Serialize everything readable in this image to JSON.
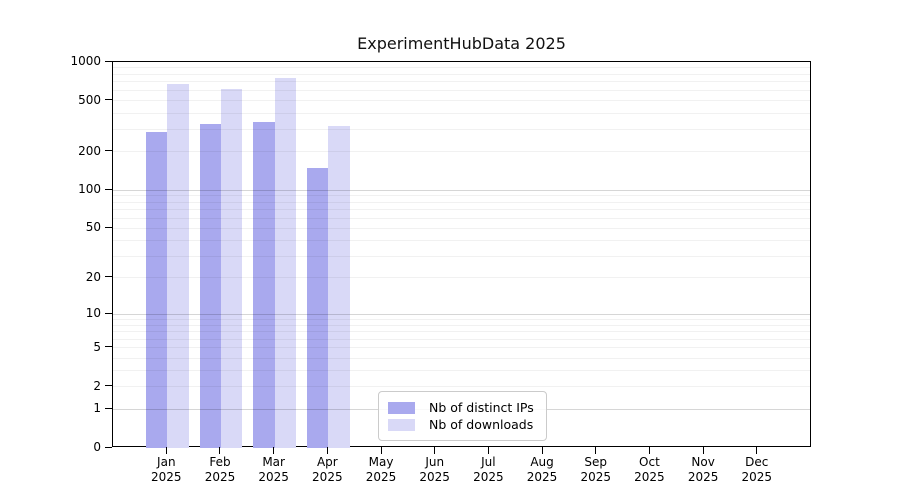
{
  "chart_data": {
    "type": "bar",
    "title": "ExperimentHubData 2025",
    "y_scale": "log1p",
    "ylim": [
      0,
      1000
    ],
    "yticks": [
      0,
      1,
      2,
      5,
      10,
      20,
      50,
      100,
      200,
      500,
      1000
    ],
    "grid": true,
    "categories": [
      "Jan",
      "Feb",
      "Mar",
      "Apr",
      "May",
      "Jun",
      "Jul",
      "Aug",
      "Sep",
      "Oct",
      "Nov",
      "Dec"
    ],
    "category_year": "2025",
    "series": [
      {
        "name": "Nb of distinct IPs",
        "color": "#a9a9ee",
        "values": [
          285,
          330,
          340,
          150,
          0,
          0,
          0,
          0,
          0,
          0,
          0,
          0
        ]
      },
      {
        "name": "Nb of downloads",
        "color": "#d9d9f7",
        "values": [
          670,
          620,
          745,
          315,
          0,
          0,
          0,
          0,
          0,
          0,
          0,
          0
        ]
      }
    ],
    "legend": {
      "position": "bottom-center",
      "entries": [
        "Nb of distinct IPs",
        "Nb of downloads"
      ]
    }
  }
}
